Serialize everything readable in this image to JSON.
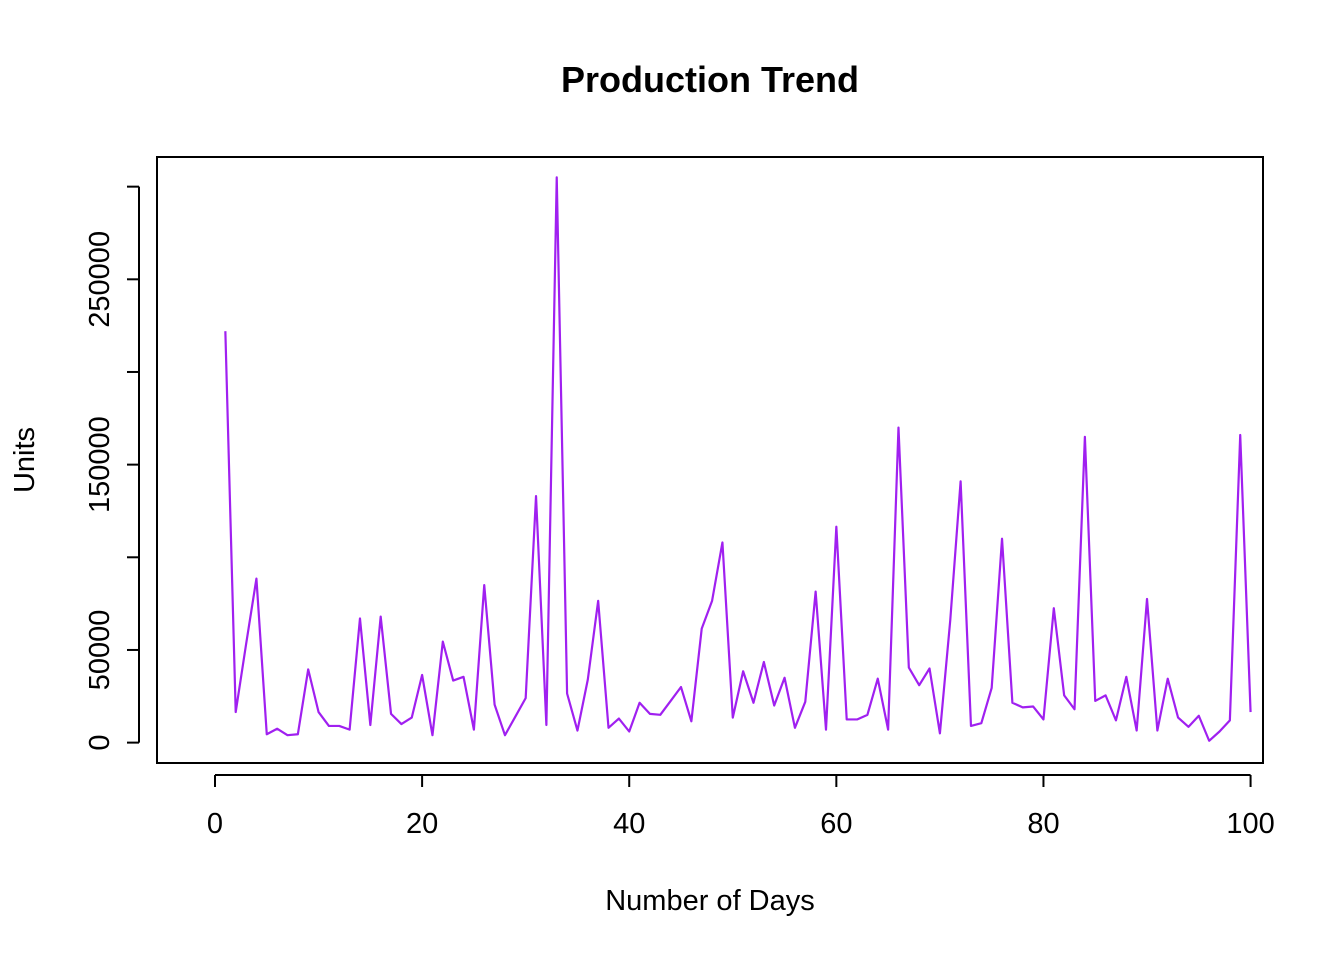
{
  "chart_data": {
    "type": "line",
    "title": "Production Trend",
    "xlabel": "Number of Days",
    "ylabel": "Units",
    "xlim": [
      -5.6,
      101.2
    ],
    "ylim": [
      -11000,
      316000
    ],
    "x_ticks": [
      0,
      20,
      40,
      60,
      80,
      100
    ],
    "x_tick_labels": [
      "0",
      "20",
      "40",
      "60",
      "80",
      "100"
    ],
    "y_ticks": [
      0,
      50000,
      100000,
      150000,
      200000,
      250000,
      300000
    ],
    "y_tick_labels": [
      "0",
      "50000",
      "",
      "150000",
      "",
      "250000",
      ""
    ],
    "grid": false,
    "legend": "none",
    "series": [
      {
        "color": "#a020f0",
        "x": [
          1,
          2,
          3,
          4,
          5,
          6,
          7,
          8,
          9,
          10,
          11,
          12,
          13,
          14,
          15,
          16,
          17,
          18,
          19,
          20,
          21,
          22,
          23,
          24,
          25,
          26,
          27,
          28,
          29,
          30,
          31,
          32,
          33,
          34,
          35,
          36,
          37,
          38,
          39,
          40,
          41,
          42,
          43,
          44,
          45,
          46,
          47,
          48,
          49,
          50,
          51,
          52,
          53,
          54,
          55,
          56,
          57,
          58,
          59,
          60,
          61,
          62,
          63,
          64,
          65,
          66,
          67,
          68,
          69,
          70,
          71,
          72,
          73,
          74,
          75,
          76,
          77,
          78,
          79,
          80,
          81,
          82,
          83,
          84,
          85,
          86,
          87,
          88,
          89,
          90,
          91,
          92,
          93,
          94,
          95,
          96,
          97,
          98,
          99,
          100
        ],
        "values": [
          222000,
          16500,
          53000,
          88500,
          4500,
          7500,
          4000,
          4500,
          39500,
          16500,
          9000,
          9000,
          7000,
          67000,
          9500,
          68000,
          15500,
          10000,
          13500,
          36500,
          4000,
          54500,
          33500,
          35500,
          7000,
          85000,
          20500,
          4000,
          14000,
          24000,
          133000,
          9500,
          305000,
          26500,
          6500,
          34000,
          76500,
          8000,
          13000,
          6000,
          21500,
          15500,
          15000,
          22500,
          30000,
          11500,
          61500,
          76500,
          108000,
          13500,
          38500,
          21500,
          43500,
          20000,
          35000,
          8000,
          22000,
          81500,
          7000,
          116500,
          12500,
          12500,
          15000,
          34500,
          7000,
          170000,
          40500,
          31000,
          40000,
          5000,
          66000,
          141000,
          9000,
          10500,
          29500,
          110000,
          21500,
          19000,
          19500,
          12500,
          72500,
          25500,
          18000,
          165000,
          22500,
          25500,
          12000,
          35500,
          6500,
          77500,
          6500,
          34500,
          13500,
          8500,
          14500,
          1000,
          6000,
          12000,
          166000,
          16500
        ]
      }
    ]
  }
}
